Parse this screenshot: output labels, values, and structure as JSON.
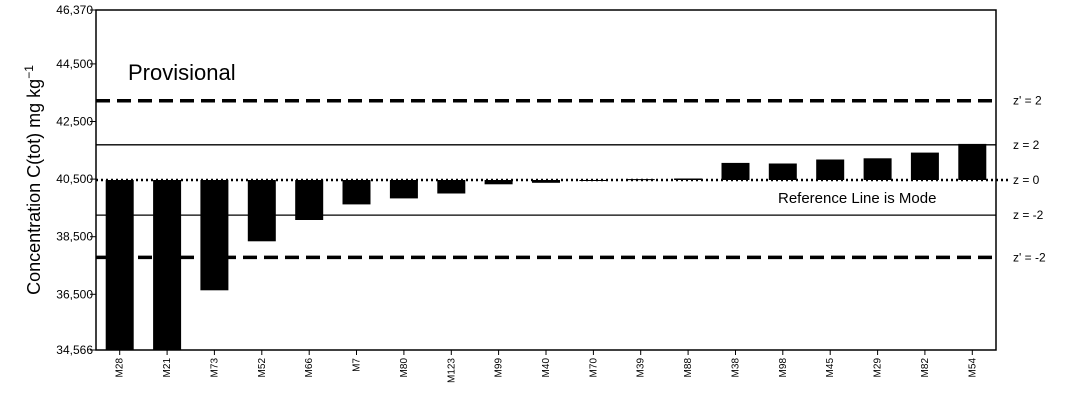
{
  "chart_data": {
    "type": "bar",
    "title": "",
    "xlabel": "",
    "ylabel": "Concentration C(tot) mg kg",
    "ylabel_sup": "−1",
    "ylim": [
      34566,
      46370
    ],
    "baseline": 40468,
    "categories": [
      "M28",
      "M21",
      "M73",
      "M52",
      "M66",
      "M7",
      "M80",
      "M123",
      "M99",
      "M40",
      "M70",
      "M39",
      "M88",
      "M38",
      "M98",
      "M45",
      "M29",
      "M82",
      "M54"
    ],
    "values": [
      34566,
      34566,
      36640,
      38340,
      39080,
      39620,
      39830,
      40000,
      40320,
      40370,
      40450,
      40500,
      40520,
      41060,
      41040,
      41180,
      41220,
      41420,
      41720
    ],
    "y_tick_labels": [
      "46,370",
      "44,500",
      "42,500",
      "40,500",
      "38,500",
      "36,500",
      "34,566"
    ],
    "y_ticks": [
      46370,
      44500,
      42500,
      40500,
      38500,
      36500,
      34566
    ],
    "grid": false,
    "legend": "none",
    "bar_color": "#000000",
    "provisional_label": "Provisional",
    "reference_label": "Reference Line is Mode",
    "reference_lines": [
      {
        "label": "z' = 2",
        "value": 43220,
        "style": "dashed"
      },
      {
        "label": "z = 2",
        "value": 41690,
        "style": "solid"
      },
      {
        "label": "z = 0",
        "value": 40468,
        "style": "dotted"
      },
      {
        "label": "z = -2",
        "value": 39250,
        "style": "solid"
      },
      {
        "label": "z' = -2",
        "value": 37780,
        "style": "dashed"
      }
    ]
  }
}
